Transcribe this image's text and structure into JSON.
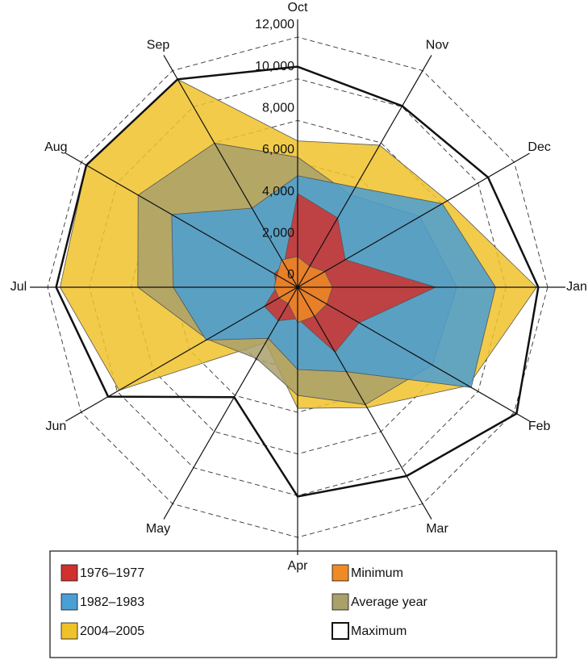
{
  "chart_data": {
    "type": "radar",
    "categories": [
      "Jan",
      "Feb",
      "Mar",
      "Apr",
      "May",
      "Jun",
      "Jul",
      "Aug",
      "Sep",
      "Oct",
      "Nov",
      "Dec"
    ],
    "ylim": [
      0,
      12000
    ],
    "yticks": [
      0,
      {
        "value": 2000,
        "label": "2,000"
      },
      {
        "value": 4000,
        "label": "4,000"
      },
      {
        "value": 6000,
        "label": "6,000"
      },
      {
        "value": 8000,
        "label": "8,000"
      },
      {
        "value": 10000,
        "label": "10,000"
      },
      {
        "value": 12000,
        "label": "12,000"
      }
    ],
    "grid": true,
    "series": [
      {
        "name": "1976–1977",
        "color": "#d0312d",
        "filled": true,
        "values": [
          6630,
          3410,
          3600,
          1510,
          1860,
          1840,
          1010,
          1300,
          1300,
          4500,
          3840,
          2640
        ]
      },
      {
        "name": "1982–1983",
        "color": "#4a9fd4",
        "filled": true,
        "values": [
          9500,
          9620,
          4680,
          3950,
          2830,
          5070,
          5970,
          6980,
          4380,
          5350,
          5540,
          8020
        ]
      },
      {
        "name": "2004–2005",
        "color": "#f0c22a",
        "filled": true,
        "values": [
          11470,
          9450,
          6670,
          5810,
          3070,
          9890,
          11400,
          11710,
          11520,
          7020,
          7870,
          8300
        ]
      },
      {
        "name": "Minimum",
        "color": "#f08a24",
        "filled": true,
        "values": [
          1670,
          1620,
          1610,
          1700,
          900,
          1040,
          1120,
          1150,
          1520,
          1470,
          1160,
          1510
        ]
      },
      {
        "name": "Average year",
        "color": "#a9a06a",
        "filled": true,
        "values": [
          7640,
          7470,
          6500,
          5190,
          3950,
          5000,
          7670,
          8840,
          7980,
          6240,
          5110,
          6780
        ]
      },
      {
        "name": "Maximum",
        "color": "#111111",
        "filled": false,
        "values": [
          11550,
          12130,
          10460,
          10040,
          6090,
          10500,
          11590,
          11710,
          11520,
          10580,
          10040,
          10550
        ]
      }
    ]
  }
}
